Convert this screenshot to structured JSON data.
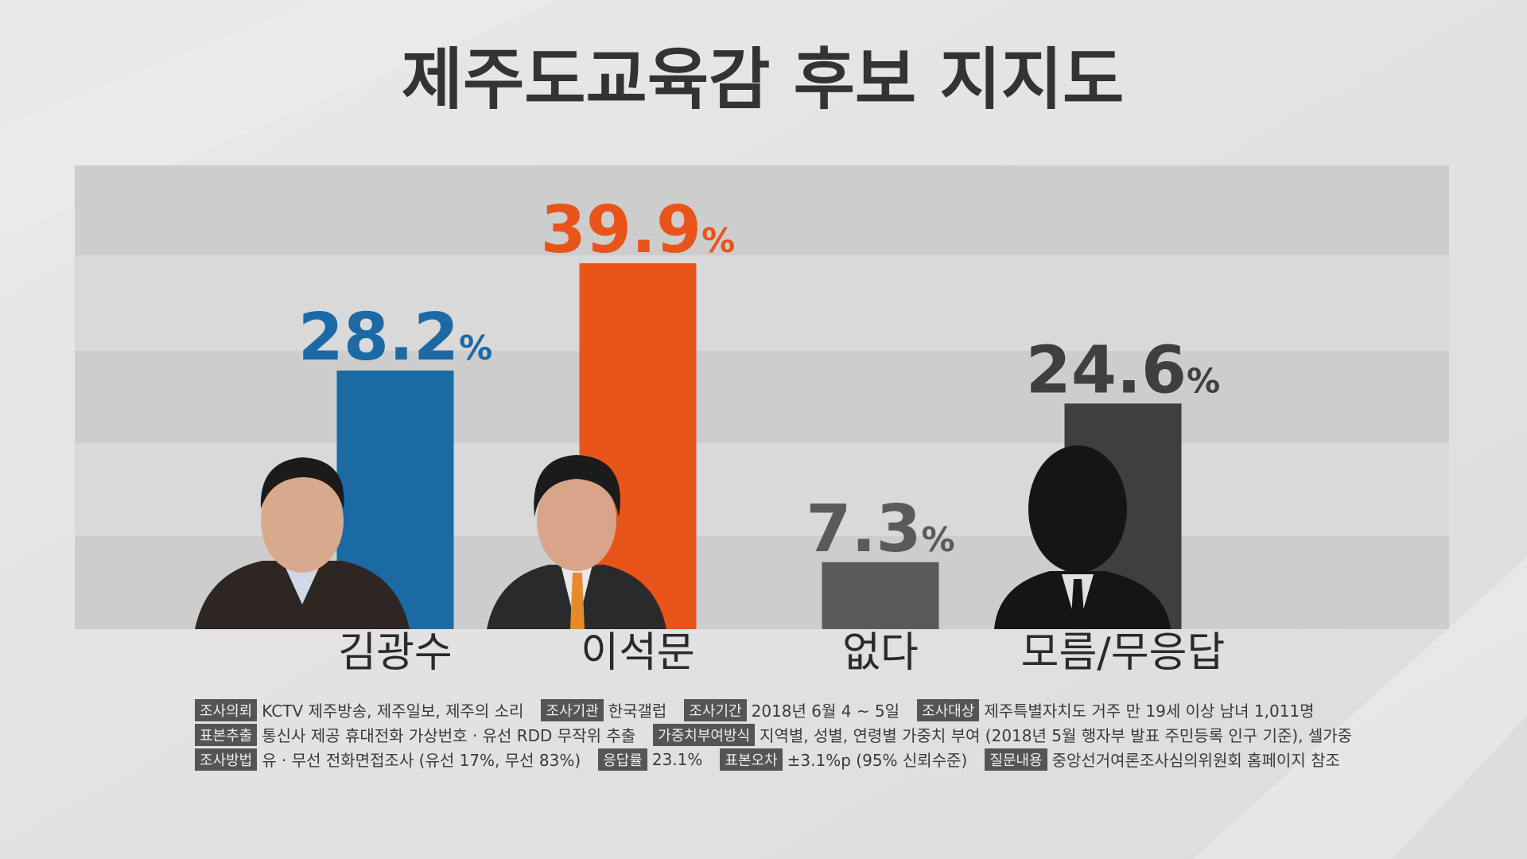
{
  "chart_data": {
    "type": "bar",
    "title": "제주도교육감 후보 지지도",
    "categories": [
      "김광수",
      "이석문",
      "없다",
      "모름/무응답"
    ],
    "values": [
      28.2,
      39.9,
      7.3,
      24.6
    ],
    "value_labels": [
      "28.2%",
      "39.9%",
      "7.3%",
      "24.6%"
    ],
    "colors": [
      "#1b6aa5",
      "#e8541a",
      "#5a5a5a",
      "#3f3f3f"
    ]
  },
  "notes": [
    [
      {
        "label": "조사의뢰",
        "text": "KCTV 제주방송, 제주일보, 제주의 소리"
      },
      {
        "label": "조사기관",
        "text": "한국갤럽"
      },
      {
        "label": "조사기간",
        "text": "2018년 6월 4 ~ 5일"
      },
      {
        "label": "조사대상",
        "text": "제주특별자치도 거주 만 19세 이상 남녀 1,011명"
      }
    ],
    [
      {
        "label": "표본추출",
        "text": "통신사 제공 휴대전화 가상번호 · 유선 RDD 무작위 추출"
      },
      {
        "label": "가중치부여방식",
        "text": "지역별, 성별, 연령별 가중치 부여 (2018년 5월 행자부 발표 주민등록 인구 기준), 셀가중"
      }
    ],
    [
      {
        "label": "조사방법",
        "text": "유 · 무선 전화면접조사 (유선 17%, 무선 83%)"
      },
      {
        "label": "응답률",
        "text": "23.1%"
      },
      {
        "label": "표본오차",
        "text": "±3.1%p (95% 신뢰수준)"
      },
      {
        "label": "질문내용",
        "text": "중앙선거여론조사심의위원회 홈페이지 참조"
      }
    ]
  ]
}
